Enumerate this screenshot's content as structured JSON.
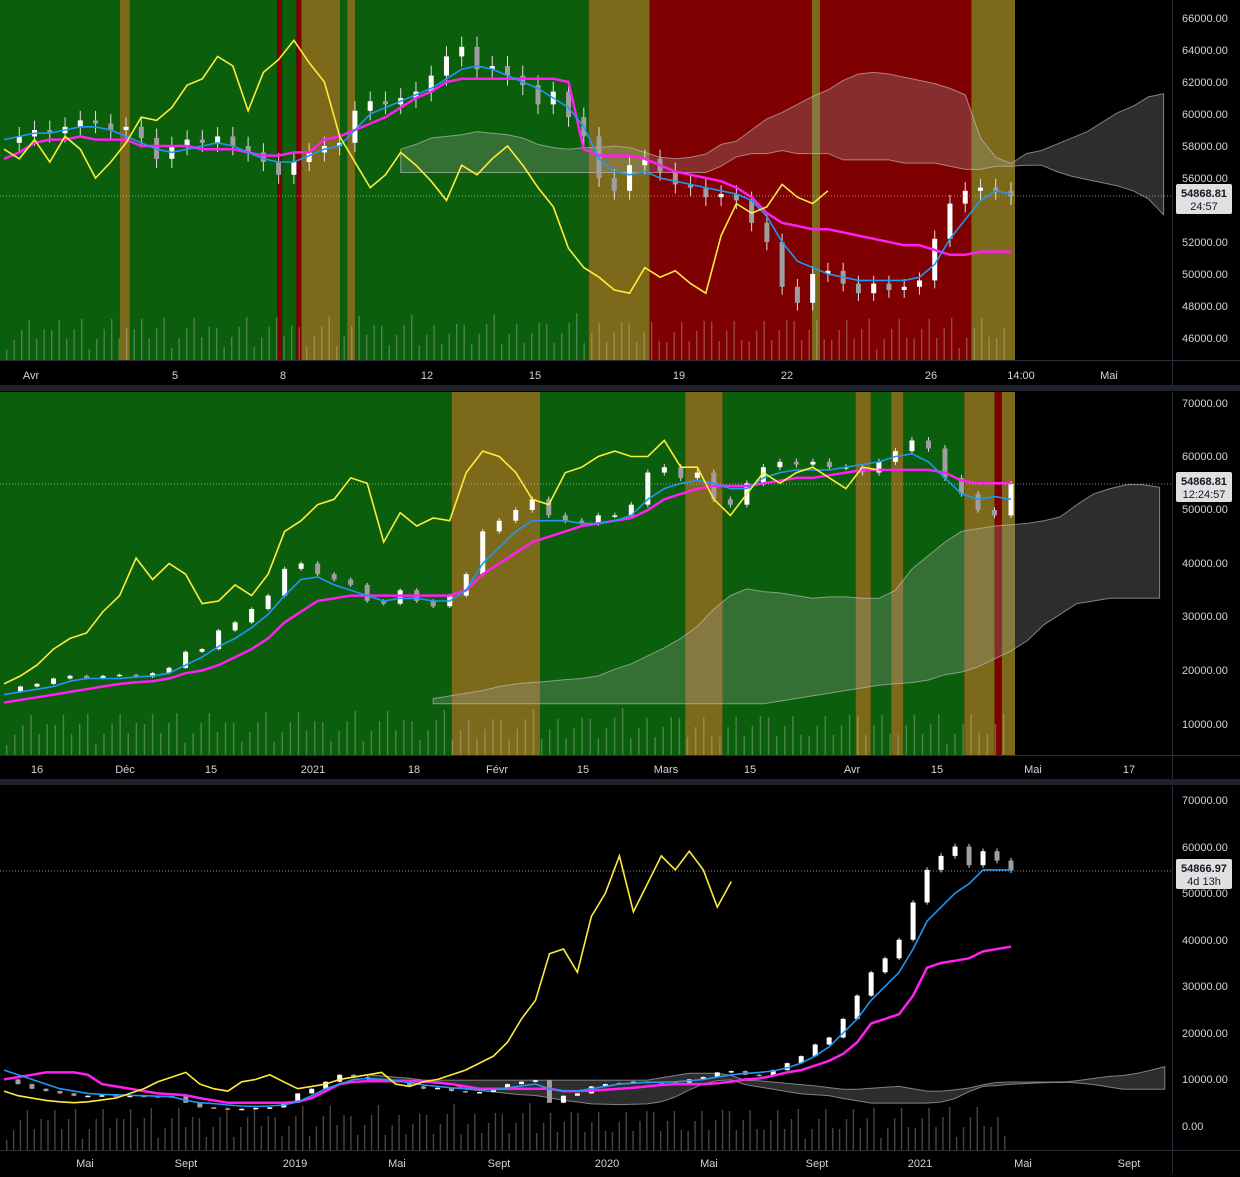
{
  "colors": {
    "background": "#000000",
    "green_zone": "#0b5e0b",
    "olive_zone": "#7c6a1a",
    "red_zone": "#7e0000",
    "tenkan_blue": "#2196f3",
    "kijun_magenta": "#ff1ff0",
    "chikou_yellow": "#ffeb3b",
    "cloud": "#9e9e9e",
    "candle": "#e0e0e0",
    "label_bg": "#e0e0e0",
    "separator": "#2a2e39"
  },
  "chart_data": [
    {
      "type": "candlestick",
      "timeframe": "1h",
      "title": "",
      "x_tick_labels": [
        "Avr",
        "5",
        "8",
        "12",
        "15",
        "19",
        "22",
        "26",
        "14:00",
        "Mai"
      ],
      "y_tick_labels": [
        "46000.00",
        "48000.00",
        "50000.00",
        "52000.00",
        "54000.00",
        "56000.00",
        "58000.00",
        "60000.00",
        "62000.00",
        "64000.00",
        "66000.00"
      ],
      "ylim": [
        45000,
        67000
      ],
      "last_price": "54868.81",
      "countdown": "24:57",
      "zones": [
        {
          "from": 0.0,
          "to": 0.118,
          "color": "green"
        },
        {
          "from": 0.118,
          "to": 0.128,
          "color": "olive"
        },
        {
          "from": 0.128,
          "to": 0.273,
          "color": "green"
        },
        {
          "from": 0.273,
          "to": 0.278,
          "color": "red"
        },
        {
          "from": 0.278,
          "to": 0.292,
          "color": "green"
        },
        {
          "from": 0.292,
          "to": 0.297,
          "color": "red"
        },
        {
          "from": 0.297,
          "to": 0.335,
          "color": "olive"
        },
        {
          "from": 0.335,
          "to": 0.342,
          "color": "green"
        },
        {
          "from": 0.342,
          "to": 0.35,
          "color": "olive"
        },
        {
          "from": 0.35,
          "to": 0.58,
          "color": "green"
        },
        {
          "from": 0.58,
          "to": 0.64,
          "color": "olive"
        },
        {
          "from": 0.64,
          "to": 0.8,
          "color": "red"
        },
        {
          "from": 0.8,
          "to": 0.808,
          "color": "olive"
        },
        {
          "from": 0.808,
          "to": 0.957,
          "color": "red"
        },
        {
          "from": 0.957,
          "to": 1.0,
          "color": "olive"
        }
      ],
      "price": [
        58200,
        58600,
        59000,
        58800,
        59200,
        59600,
        59400,
        59000,
        59200,
        58500,
        57200,
        58000,
        58400,
        58200,
        58600,
        58000,
        57600,
        57000,
        56200,
        57000,
        57600,
        58000,
        58200,
        60200,
        60800,
        60600,
        61000,
        61400,
        62400,
        63600,
        64200,
        62800,
        63000,
        62400,
        61800,
        60600,
        61400,
        59800,
        58600,
        56000,
        55200,
        56800,
        57200,
        56400,
        55600,
        55400,
        54800,
        55000,
        54600,
        53200,
        52000,
        49200,
        48200,
        50000,
        50200,
        49400,
        48800,
        49400,
        49000,
        49200,
        49600,
        52200,
        54400,
        55200,
        55400,
        55200,
        54868
      ],
      "tenkan": [
        58400,
        58600,
        58800,
        58800,
        59000,
        59200,
        59200,
        59000,
        58600,
        58200,
        57800,
        57600,
        57800,
        58000,
        58200,
        58000,
        57600,
        57200,
        57000,
        57000,
        57400,
        57800,
        58000,
        59000,
        60000,
        60400,
        60800,
        61200,
        61600,
        62200,
        62800,
        63000,
        62800,
        62400,
        62000,
        61600,
        61000,
        60400,
        59200,
        57200,
        56400,
        56200,
        56400,
        56000,
        55800,
        55600,
        55400,
        55200,
        55000,
        54600,
        53600,
        52000,
        50800,
        50400,
        50000,
        49800,
        49600,
        49600,
        49600,
        49600,
        49800,
        50600,
        52200,
        53400,
        54600,
        55200,
        55000
      ],
      "kijun": [
        57200,
        57600,
        58200,
        58400,
        58400,
        58600,
        58400,
        58400,
        58400,
        58000,
        58000,
        58000,
        58000,
        57800,
        57800,
        57800,
        57600,
        57400,
        57400,
        57600,
        57600,
        58400,
        58600,
        59000,
        59400,
        59800,
        60400,
        61000,
        61400,
        62000,
        62200,
        62200,
        62200,
        62200,
        62200,
        62200,
        62200,
        62000,
        57800,
        57400,
        57400,
        57400,
        57200,
        56800,
        56400,
        56200,
        56000,
        55800,
        55400,
        54800,
        53800,
        53200,
        53000,
        52800,
        52800,
        52600,
        52400,
        52200,
        52000,
        51800,
        51800,
        51500,
        51200,
        51200,
        51400,
        51400,
        51400
      ],
      "chikou": [
        57800,
        57200,
        58400,
        57000,
        58600,
        57800,
        56000,
        57000,
        58200,
        59800,
        59600,
        60400,
        61800,
        62200,
        63600,
        63000,
        60200,
        62600,
        63400,
        64600,
        63200,
        62000,
        58600,
        57000,
        55400,
        56200,
        57600,
        56800,
        55800,
        54600,
        56800,
        56200,
        57200,
        58000,
        56800,
        55400,
        54200,
        51600,
        50400,
        49800,
        49000,
        48800,
        50400,
        49800,
        50200,
        49400,
        48800,
        52400,
        54400,
        53800,
        54200,
        55600,
        54800,
        54400,
        55200
      ]
    },
    {
      "type": "candlestick",
      "timeframe": "1D",
      "title": "",
      "x_tick_labels": [
        "16",
        "Déc",
        "15",
        "2021",
        "18",
        "Févr",
        "15",
        "Mars",
        "15",
        "Avr",
        "15",
        "Mai",
        "17"
      ],
      "y_tick_labels": [
        "10000.00",
        "20000.00",
        "30000.00",
        "40000.00",
        "50000.00",
        "60000.00",
        "70000.00"
      ],
      "ylim": [
        4000,
        72000
      ],
      "last_price": "54868.81",
      "countdown": "12:24:57",
      "zones": [
        {
          "from": 0.0,
          "to": 0.445,
          "color": "green"
        },
        {
          "from": 0.445,
          "to": 0.532,
          "color": "olive"
        },
        {
          "from": 0.532,
          "to": 0.675,
          "color": "green"
        },
        {
          "from": 0.675,
          "to": 0.712,
          "color": "olive"
        },
        {
          "from": 0.712,
          "to": 0.843,
          "color": "green"
        },
        {
          "from": 0.843,
          "to": 0.858,
          "color": "olive"
        },
        {
          "from": 0.858,
          "to": 0.878,
          "color": "green"
        },
        {
          "from": 0.878,
          "to": 0.89,
          "color": "olive"
        },
        {
          "from": 0.89,
          "to": 0.95,
          "color": "green"
        },
        {
          "from": 0.95,
          "to": 0.98,
          "color": "olive"
        },
        {
          "from": 0.98,
          "to": 0.987,
          "color": "red"
        },
        {
          "from": 0.987,
          "to": 1.0,
          "color": "olive"
        }
      ],
      "price": [
        16000,
        17000,
        17500,
        18500,
        19000,
        18500,
        19000,
        19200,
        18800,
        19500,
        20500,
        23500,
        24000,
        27500,
        29000,
        31500,
        34000,
        39000,
        40000,
        38000,
        37000,
        36000,
        33000,
        32500,
        35000,
        33000,
        32000,
        34000,
        38000,
        46000,
        48000,
        50000,
        52000,
        49000,
        48000,
        47500,
        49000,
        49000,
        51000,
        57000,
        58000,
        56000,
        57000,
        52000,
        51000,
        55000,
        58000,
        59000,
        58500,
        59000,
        58000,
        58000,
        57000,
        59000,
        61000,
        63000,
        61500,
        56000,
        53000,
        50000,
        49000,
        54868
      ],
      "tenkan": [
        15500,
        16000,
        16500,
        17000,
        18000,
        18500,
        18500,
        18500,
        18800,
        19000,
        19500,
        21000,
        22500,
        24500,
        26000,
        28000,
        30500,
        34000,
        37000,
        37500,
        36000,
        35000,
        34000,
        33000,
        33500,
        33500,
        33000,
        33000,
        35000,
        40000,
        43000,
        46000,
        48000,
        48000,
        48000,
        47500,
        47500,
        48000,
        49000,
        52000,
        54000,
        55000,
        55500,
        55000,
        54000,
        54000,
        56000,
        57000,
        57500,
        57500,
        57500,
        58000,
        58500,
        59000,
        60000,
        60500,
        59000,
        56000,
        53000,
        52000,
        52500,
        52000
      ],
      "kijun": [
        14000,
        14500,
        15000,
        15500,
        16000,
        16500,
        17000,
        17500,
        17800,
        18000,
        18500,
        19500,
        20000,
        21000,
        22500,
        24000,
        26000,
        29000,
        31000,
        33000,
        33500,
        34000,
        34000,
        34000,
        34000,
        34000,
        34000,
        34000,
        35000,
        38000,
        40000,
        42000,
        44000,
        45000,
        46000,
        47000,
        47500,
        48000,
        48500,
        50000,
        52000,
        53000,
        54000,
        54500,
        54500,
        54500,
        55000,
        55500,
        56000,
        56000,
        56500,
        57000,
        57500,
        57500,
        57500,
        57500,
        57500,
        57000,
        55500,
        55000,
        55000,
        55000
      ],
      "chikou": [
        17500,
        19000,
        21000,
        24000,
        26000,
        27000,
        31000,
        34000,
        41000,
        37000,
        40000,
        38000,
        32500,
        33000,
        36000,
        34000,
        38000,
        46000,
        48000,
        51000,
        52000,
        56000,
        55000,
        44000,
        49500,
        47000,
        48500,
        48000,
        57000,
        61000,
        60000,
        57000,
        52000,
        51000,
        57000,
        58000,
        60000,
        61000,
        60000,
        60000,
        63000,
        58000,
        58000,
        52000,
        49000,
        53000,
        57000,
        55000,
        57000,
        58000,
        56000,
        54000,
        58000,
        57500
      ]
    },
    {
      "type": "candlestick",
      "timeframe": "1W",
      "title": "",
      "x_tick_labels": [
        "Mai",
        "Sept",
        "2019",
        "Mai",
        "Sept",
        "2020",
        "Mai",
        "Sept",
        "2021",
        "Mai",
        "Sept"
      ],
      "y_tick_labels": [
        "0.00",
        "10000.00",
        "20000.00",
        "30000.00",
        "40000.00",
        "50000.00",
        "60000.00",
        "70000.00"
      ],
      "ylim": [
        -3000,
        72000
      ],
      "last_price": "54866.97",
      "countdown": "4d 13h",
      "zones": [],
      "price": [
        10000,
        9000,
        8000,
        7500,
        7000,
        6500,
        6500,
        6600,
        6400,
        6500,
        6400,
        6300,
        6400,
        5000,
        4000,
        3800,
        3500,
        3700,
        3900,
        4000,
        5000,
        7000,
        8000,
        9500,
        11000,
        10500,
        10000,
        9800,
        9500,
        8500,
        8000,
        8200,
        7500,
        7200,
        7300,
        8000,
        9000,
        9500,
        9800,
        5000,
        6500,
        7000,
        8500,
        9000,
        9200,
        9500,
        9400,
        9200,
        9300,
        10000,
        10500,
        11500,
        11800,
        11000,
        10800,
        12000,
        13500,
        15000,
        17500,
        19000,
        23000,
        28000,
        33000,
        36000,
        40000,
        48000,
        55000,
        58000,
        60000,
        56000,
        59000,
        57000,
        54866
      ],
      "tenkan": [
        12000,
        11000,
        10000,
        9000,
        8000,
        7500,
        7000,
        6800,
        6700,
        6600,
        6500,
        6400,
        6300,
        5500,
        5000,
        4800,
        4500,
        4300,
        4200,
        4300,
        4500,
        5200,
        6500,
        8000,
        9000,
        10000,
        10200,
        10000,
        9800,
        9300,
        8800,
        8500,
        8200,
        8000,
        7800,
        7800,
        8200,
        8600,
        9000,
        8000,
        7500,
        7500,
        8000,
        8500,
        9000,
        9200,
        9400,
        9400,
        9500,
        9700,
        10000,
        10500,
        11000,
        11300,
        11500,
        11800,
        12500,
        13500,
        15000,
        17000,
        20000,
        23000,
        27000,
        30000,
        33000,
        38000,
        44000,
        47000,
        50000,
        52000,
        55000,
        55000,
        55000
      ],
      "kijun": [
        10000,
        10500,
        11000,
        11500,
        11500,
        11500,
        11000,
        9000,
        8500,
        8000,
        7500,
        7000,
        6800,
        6600,
        6000,
        5500,
        5000,
        5000,
        5000,
        5000,
        5000,
        5200,
        6000,
        7500,
        9000,
        9500,
        9600,
        9600,
        9600,
        9600,
        9500,
        9300,
        9000,
        8500,
        8000,
        8000,
        8000,
        8000,
        8000,
        8000,
        7500,
        7500,
        7600,
        7800,
        8000,
        8200,
        8500,
        8800,
        9000,
        9000,
        9000,
        9200,
        9500,
        10000,
        10200,
        10800,
        11500,
        12000,
        13000,
        14000,
        15500,
        18000,
        22000,
        23000,
        24000,
        28000,
        34000,
        35000,
        35500,
        36000,
        37500,
        38000,
        38500
      ],
      "chikou": [
        7500,
        6500,
        6000,
        5500,
        5200,
        5000,
        5200,
        5600,
        6000,
        7000,
        8000,
        9500,
        10500,
        11500,
        9000,
        8000,
        7500,
        9500,
        10000,
        11000,
        9500,
        8000,
        8500,
        9000,
        10000,
        10500,
        11000,
        11500,
        9000,
        8500,
        9500,
        10000,
        11000,
        12000,
        13500,
        15000,
        18000,
        23000,
        27000,
        37000,
        38000,
        33000,
        45000,
        50000,
        58000,
        46000,
        52000,
        58000,
        55000,
        59000,
        55000,
        47000,
        52500
      ]
    }
  ]
}
